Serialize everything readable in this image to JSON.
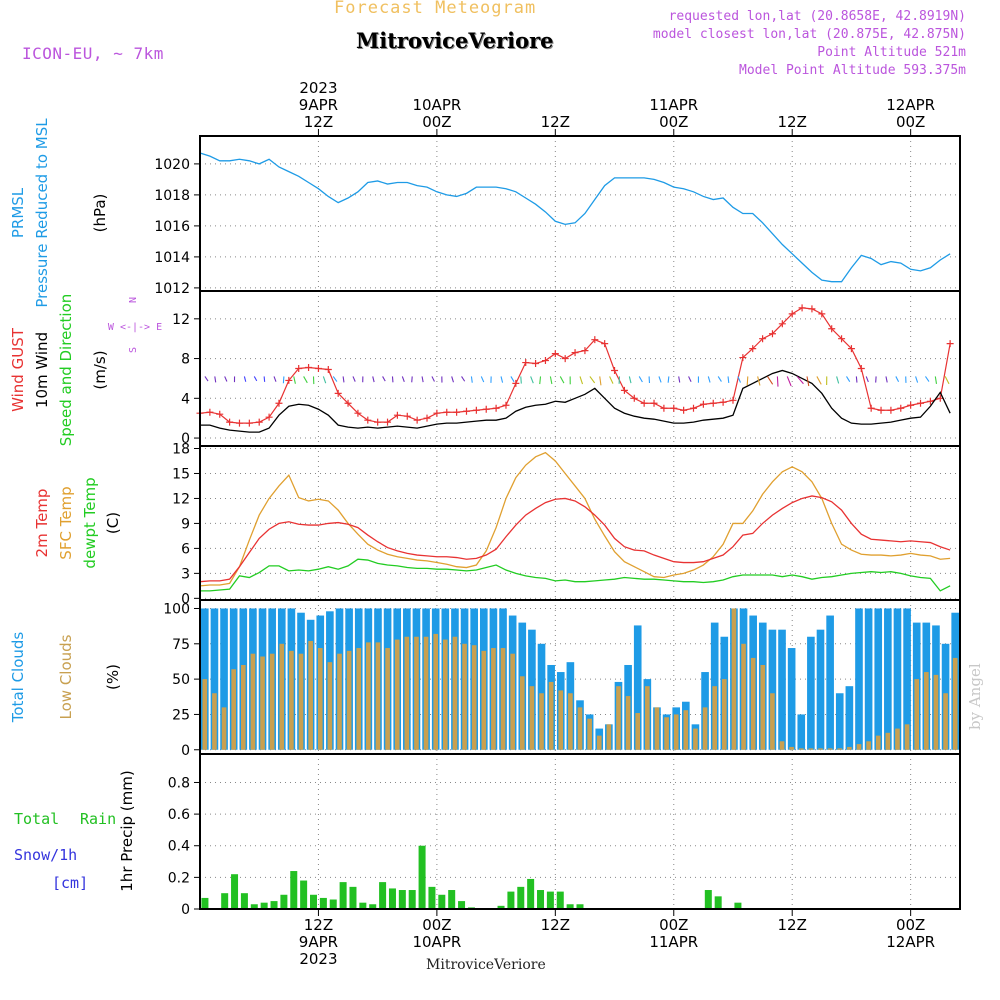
{
  "header": {
    "title": "MitroviceVeriore",
    "subtitle": "Forecast Meteogram",
    "model": "ICON-EU, ~ 7km",
    "requested": "requested lon,lat (20.8658E, 42.8919N)",
    "closest": "model closest lon,lat (20.875E, 42.875N)",
    "point_altitude": "Point Altitude 521m",
    "model_altitude": "Model Point Altitude 593.375m",
    "footer_name": "MitroviceVeriore",
    "watermark": "by Angel"
  },
  "colors": {
    "pressure": "#1e9be6",
    "gust": "#e83232",
    "wind": "#000000",
    "temp": "#e83232",
    "sfc": "#e0a030",
    "dewpt": "#22cc22",
    "total_clouds": "#1e9be6",
    "low_clouds": "#c8a050",
    "rain": "#22c022",
    "snow": "#3333dd",
    "header_purple": "#bb55dd",
    "subtitle_orange": "#f0c060"
  },
  "time_axis": {
    "top_year": "2023",
    "top_labels": [
      {
        "hour": 12,
        "line1": "9APR",
        "line2": "12Z"
      },
      {
        "hour": 24,
        "line1": "10APR",
        "line2": "00Z"
      },
      {
        "hour": 36,
        "line1": "",
        "line2": "12Z"
      },
      {
        "hour": 48,
        "line1": "11APR",
        "line2": "00Z"
      },
      {
        "hour": 60,
        "line1": "",
        "line2": "12Z"
      },
      {
        "hour": 72,
        "line1": "12APR",
        "line2": "00Z"
      }
    ],
    "bottom_labels": [
      {
        "hour": 12,
        "line1": "12Z",
        "line2": "9APR",
        "line3": "2023"
      },
      {
        "hour": 24,
        "line1": "00Z",
        "line2": "10APR",
        "line3": ""
      },
      {
        "hour": 36,
        "line1": "12Z",
        "line2": "",
        "line3": ""
      },
      {
        "hour": 48,
        "line1": "00Z",
        "line2": "11APR",
        "line3": ""
      },
      {
        "hour": 60,
        "line1": "12Z",
        "line2": "",
        "line3": ""
      },
      {
        "hour": 72,
        "line1": "00Z",
        "line2": "12APR",
        "line3": ""
      }
    ],
    "start_hour": 0,
    "end_hour": 77
  },
  "chart_data": [
    {
      "type": "line",
      "name": "pressure",
      "ylabel": [
        "PRMSL",
        "Pressure Reduced to MSL"
      ],
      "unit": "(hPa)",
      "ylim": [
        1011.8,
        1021.8
      ],
      "yticks": [
        1012,
        1014,
        1016,
        1018,
        1020
      ],
      "series": [
        {
          "name": "PRMSL",
          "x": [
            0,
            1,
            2,
            3,
            4,
            5,
            6,
            7,
            8,
            9,
            10,
            11,
            12,
            13,
            14,
            15,
            16,
            17,
            18,
            19,
            20,
            21,
            22,
            23,
            24,
            25,
            26,
            27,
            28,
            29,
            30,
            31,
            32,
            33,
            34,
            35,
            36,
            37,
            38,
            39,
            40,
            41,
            42,
            43,
            44,
            45,
            46,
            47,
            48,
            49,
            50,
            51,
            52,
            53,
            54,
            55,
            56,
            57,
            58,
            59,
            60,
            61,
            62,
            63,
            64,
            65,
            66,
            67,
            68,
            69,
            70,
            71,
            72,
            73,
            74,
            75,
            76
          ],
          "values": [
            1020.7,
            1020.5,
            1020.2,
            1020.2,
            1020.3,
            1020.2,
            1020.0,
            1020.3,
            1019.8,
            1019.5,
            1019.2,
            1018.8,
            1018.4,
            1017.9,
            1017.5,
            1017.8,
            1018.2,
            1018.8,
            1018.9,
            1018.7,
            1018.8,
            1018.8,
            1018.6,
            1018.5,
            1018.2,
            1018.0,
            1017.9,
            1018.1,
            1018.5,
            1018.5,
            1018.5,
            1018.4,
            1018.2,
            1017.8,
            1017.4,
            1016.9,
            1016.3,
            1016.1,
            1016.2,
            1016.8,
            1017.7,
            1018.6,
            1019.1,
            1019.1,
            1019.1,
            1019.1,
            1019.0,
            1018.8,
            1018.5,
            1018.4,
            1018.2,
            1017.9,
            1017.7,
            1017.8,
            1017.2,
            1016.8,
            1016.8,
            1016.2,
            1015.5,
            1014.8,
            1014.2,
            1013.6,
            1013.0,
            1012.5,
            1012.4,
            1012.4,
            1013.3,
            1014.1,
            1013.9,
            1013.5,
            1013.7,
            1013.6,
            1013.2,
            1013.1,
            1013.3,
            1013.8,
            1014.2
          ]
        }
      ]
    },
    {
      "type": "line",
      "name": "wind",
      "ylabel": [
        "Wind GUST",
        "10m Wind",
        "Speed and Direction"
      ],
      "unit": "(m/s)",
      "compass": [
        "N",
        "W <-|-> E",
        "S"
      ],
      "ylim": [
        -0.8,
        14.8
      ],
      "yticks": [
        0,
        4,
        8,
        12
      ],
      "series": [
        {
          "name": "Wind GUST",
          "values": [
            2.5,
            2.6,
            2.4,
            1.6,
            1.5,
            1.5,
            1.6,
            2.1,
            3.5,
            5.8,
            7.0,
            7.1,
            7.0,
            6.9,
            4.5,
            3.5,
            2.5,
            1.8,
            1.6,
            1.6,
            2.3,
            2.2,
            1.8,
            2.0,
            2.5,
            2.6,
            2.6,
            2.7,
            2.8,
            2.9,
            3.0,
            3.3,
            5.5,
            7.6,
            7.5,
            7.8,
            8.5,
            8.0,
            8.6,
            8.8,
            9.9,
            9.5,
            6.8,
            4.8,
            4.0,
            3.5,
            3.5,
            3.0,
            3.0,
            2.8,
            3.0,
            3.4,
            3.5,
            3.6,
            3.8,
            8.1,
            9.0,
            10.0,
            10.5,
            11.5,
            12.5,
            13.1,
            13.0,
            12.5,
            11.0,
            10.0,
            9.0,
            7.0,
            3.0,
            2.8,
            2.8,
            3.0,
            3.3,
            3.5,
            3.7,
            4.0,
            9.5
          ]
        },
        {
          "name": "10m Wind",
          "values": [
            1.3,
            1.3,
            1.0,
            0.8,
            0.7,
            0.6,
            0.6,
            1.0,
            2.3,
            3.2,
            3.4,
            3.3,
            2.9,
            2.3,
            1.3,
            1.1,
            1.0,
            1.1,
            1.0,
            1.1,
            1.2,
            1.1,
            1.0,
            1.2,
            1.4,
            1.5,
            1.5,
            1.6,
            1.7,
            1.8,
            1.8,
            2.0,
            2.7,
            3.1,
            3.3,
            3.4,
            3.7,
            3.6,
            4.0,
            4.4,
            5.0,
            4.0,
            3.0,
            2.5,
            2.2,
            2.0,
            1.9,
            1.7,
            1.5,
            1.5,
            1.6,
            1.8,
            1.9,
            2.0,
            2.3,
            5.0,
            5.5,
            6.0,
            6.5,
            6.8,
            6.5,
            6.0,
            5.5,
            4.5,
            3.0,
            2.0,
            1.5,
            1.4,
            1.4,
            1.5,
            1.6,
            1.8,
            2.0,
            2.1,
            3.2,
            4.6,
            2.5
          ]
        }
      ]
    },
    {
      "type": "line",
      "name": "temperature",
      "ylabel": [
        "2m Temp",
        "SFC Temp",
        "dewpt Temp"
      ],
      "unit": "(C)",
      "ylim": [
        -0.2,
        18.3
      ],
      "yticks": [
        0,
        3,
        6,
        9,
        12,
        15,
        18
      ],
      "series": [
        {
          "name": "2m Temp",
          "values": [
            2.0,
            2.1,
            2.1,
            2.3,
            3.8,
            5.5,
            7.2,
            8.3,
            9.0,
            9.2,
            8.9,
            8.8,
            8.8,
            9.0,
            9.1,
            8.9,
            8.5,
            7.6,
            6.8,
            6.1,
            5.7,
            5.4,
            5.2,
            5.1,
            5.0,
            5.0,
            4.9,
            4.7,
            4.8,
            5.2,
            5.9,
            7.4,
            8.8,
            10.0,
            10.8,
            11.5,
            11.9,
            12.0,
            11.7,
            11.0,
            10.0,
            8.8,
            7.2,
            6.2,
            5.8,
            5.7,
            5.2,
            4.8,
            4.4,
            4.3,
            4.3,
            4.4,
            4.8,
            5.2,
            6.2,
            7.6,
            7.8,
            9.0,
            10.0,
            10.8,
            11.5,
            12.0,
            12.3,
            12.1,
            11.6,
            10.6,
            9.0,
            7.7,
            7.1,
            7.0,
            6.9,
            6.8,
            6.9,
            6.8,
            6.7,
            6.2,
            5.8
          ]
        },
        {
          "name": "SFC Temp",
          "values": [
            1.5,
            1.6,
            1.6,
            1.8,
            3.8,
            7.0,
            10.0,
            12.0,
            13.5,
            14.8,
            12.1,
            11.7,
            11.9,
            11.7,
            10.6,
            9.0,
            7.7,
            6.5,
            5.8,
            5.3,
            5.0,
            4.8,
            4.6,
            4.5,
            4.3,
            4.1,
            3.8,
            3.7,
            4.0,
            5.7,
            8.5,
            12.0,
            14.5,
            16.0,
            17.0,
            17.5,
            16.5,
            15.0,
            13.5,
            12.0,
            9.5,
            7.5,
            5.6,
            4.4,
            3.8,
            3.2,
            2.6,
            2.5,
            2.8,
            3.0,
            3.4,
            4.0,
            5.0,
            6.5,
            9.0,
            9.0,
            10.5,
            12.5,
            14.0,
            15.2,
            15.8,
            15.2,
            14.0,
            12.0,
            9.0,
            6.5,
            5.8,
            5.3,
            5.2,
            5.2,
            5.1,
            5.2,
            5.4,
            5.2,
            5.1,
            4.7,
            4.8
          ]
        },
        {
          "name": "dewpt Temp",
          "values": [
            0.9,
            0.9,
            1.0,
            1.1,
            2.7,
            2.5,
            3.1,
            3.9,
            3.9,
            3.3,
            3.4,
            3.3,
            3.5,
            3.8,
            3.5,
            3.9,
            4.7,
            4.6,
            4.2,
            4.0,
            3.9,
            3.7,
            3.6,
            3.6,
            3.5,
            3.5,
            3.4,
            3.3,
            3.4,
            3.7,
            4.0,
            3.4,
            3.0,
            2.7,
            2.5,
            2.4,
            2.1,
            2.2,
            2.0,
            2.0,
            2.1,
            2.2,
            2.3,
            2.5,
            2.4,
            2.3,
            2.3,
            2.2,
            2.1,
            2.0,
            2.0,
            1.9,
            2.0,
            2.2,
            2.6,
            2.8,
            2.8,
            2.8,
            2.8,
            2.6,
            2.8,
            2.6,
            2.3,
            2.5,
            2.6,
            2.8,
            3.0,
            3.1,
            3.2,
            3.1,
            3.2,
            3.0,
            2.7,
            2.5,
            2.4,
            0.9,
            1.5
          ]
        }
      ]
    },
    {
      "type": "bar",
      "name": "clouds",
      "ylabel": [
        "Total Clouds",
        "Low Clouds"
      ],
      "unit": "(%)",
      "ylim": [
        -3,
        106
      ],
      "yticks": [
        0,
        25,
        50,
        75,
        100
      ],
      "series": [
        {
          "name": "Total Clouds",
          "values": [
            100,
            100,
            100,
            100,
            100,
            100,
            100,
            100,
            100,
            100,
            97,
            92,
            95,
            98,
            100,
            100,
            100,
            100,
            100,
            100,
            100,
            100,
            100,
            100,
            100,
            100,
            100,
            100,
            100,
            100,
            100,
            100,
            95,
            90,
            85,
            75,
            60,
            55,
            62,
            35,
            25,
            15,
            18,
            48,
            60,
            88,
            50,
            30,
            25,
            30,
            34,
            18,
            55,
            90,
            80,
            100,
            100,
            95,
            90,
            85,
            85,
            72,
            25,
            80,
            85,
            95,
            40,
            45,
            100,
            100,
            100,
            100,
            100,
            100,
            90,
            90,
            88,
            75,
            97
          ]
        },
        {
          "name": "Low Clouds",
          "values": [
            50,
            40,
            30,
            57,
            60,
            68,
            66,
            68,
            75,
            70,
            68,
            77,
            72,
            62,
            68,
            70,
            72,
            76,
            76,
            72,
            78,
            80,
            80,
            80,
            82,
            78,
            80,
            75,
            74,
            70,
            72,
            72,
            68,
            52,
            45,
            40,
            48,
            42,
            40,
            30,
            22,
            10,
            18,
            45,
            38,
            26,
            45,
            30,
            23,
            25,
            28,
            15,
            30,
            45,
            50,
            100,
            75,
            65,
            60,
            40,
            6,
            2,
            1,
            1,
            1,
            1,
            1,
            2,
            4,
            6,
            10,
            12,
            15,
            18,
            50,
            55,
            53,
            40,
            65
          ]
        }
      ]
    },
    {
      "type": "bar",
      "name": "precip",
      "ylabel": [
        "1hr Precip (mm)"
      ],
      "legend": [
        "Total Rain",
        "Snow/1h",
        "[cm]"
      ],
      "ylim": [
        0,
        0.98
      ],
      "yticks": [
        0,
        0.2,
        0.4,
        0.6,
        0.8
      ],
      "series": [
        {
          "name": "Total Rain",
          "x": [
            0.5,
            2.5,
            3.5,
            4.5,
            5.5,
            6.5,
            7.5,
            8.5,
            9.5,
            10.5,
            11.5,
            12.5,
            13.5,
            14.5,
            15.5,
            16.5,
            17.5,
            18.5,
            19.5,
            20.5,
            21.5,
            22.5,
            23.5,
            24.5,
            25.5,
            26.5,
            27.5,
            30.5,
            31.5,
            32.5,
            33.5,
            34.5,
            35.5,
            36.5,
            37.5,
            38.5,
            39.5,
            51.5,
            52.5,
            54.5
          ],
          "values": [
            0.07,
            0.1,
            0.22,
            0.1,
            0.03,
            0.04,
            0.05,
            0.09,
            0.24,
            0.18,
            0.09,
            0.07,
            0.06,
            0.17,
            0.14,
            0.04,
            0.03,
            0.17,
            0.13,
            0.12,
            0.12,
            0.4,
            0.14,
            0.09,
            0.12,
            0.05,
            0.01,
            0.02,
            0.11,
            0.14,
            0.19,
            0.12,
            0.11,
            0.11,
            0.03,
            0.03,
            0.0,
            0.12,
            0.08,
            0.04
          ]
        }
      ]
    }
  ]
}
